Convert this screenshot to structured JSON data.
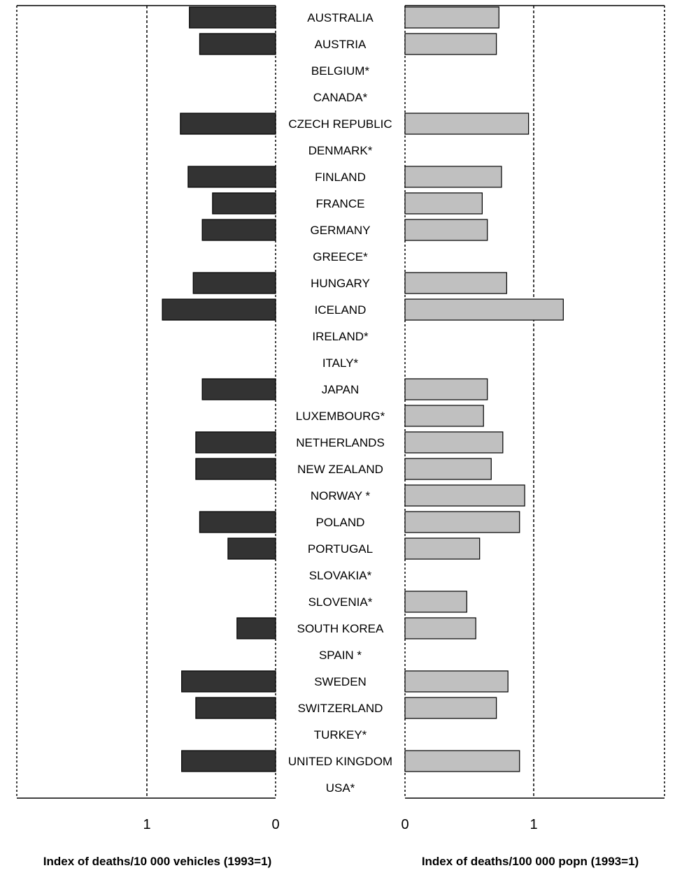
{
  "chart_data": {
    "type": "bar",
    "orientation": "horizontal",
    "layout": "butterfly",
    "categories": [
      "AUSTRALIA",
      "AUSTRIA",
      "BELGIUM*",
      "CANADA*",
      "CZECH REPUBLIC",
      "DENMARK*",
      "FINLAND",
      "FRANCE",
      "GERMANY",
      "GREECE*",
      "HUNGARY",
      "ICELAND",
      "IRELAND*",
      "ITALY*",
      "JAPAN",
      "LUXEMBOURG*",
      "NETHERLANDS",
      "NEW ZEALAND",
      "NORWAY *",
      "POLAND",
      "PORTUGAL",
      "SLOVAKIA*",
      "SLOVENIA*",
      "SOUTH KOREA",
      "SPAIN *",
      "SWEDEN",
      "SWITZERLAND",
      "TURKEY*",
      "UNITED KINGDOM",
      "USA*"
    ],
    "series": [
      {
        "side": "left",
        "color": "#333333",
        "values": [
          0.67,
          0.59,
          null,
          null,
          0.74,
          null,
          0.68,
          0.49,
          0.57,
          null,
          0.64,
          0.88,
          null,
          null,
          0.57,
          null,
          0.62,
          0.62,
          null,
          0.59,
          0.37,
          null,
          null,
          0.3,
          null,
          0.73,
          0.62,
          null,
          0.73,
          null
        ]
      },
      {
        "side": "right",
        "color": "#c0c0c0",
        "values": [
          0.73,
          0.71,
          null,
          null,
          0.96,
          null,
          0.75,
          0.6,
          0.64,
          null,
          0.79,
          1.23,
          null,
          null,
          0.64,
          0.61,
          0.76,
          0.67,
          0.93,
          0.89,
          0.58,
          null,
          0.48,
          0.55,
          null,
          0.8,
          0.71,
          null,
          0.89,
          null
        ]
      }
    ],
    "left_axis": {
      "xlim": [
        0,
        2
      ],
      "ticks": [
        "1",
        "0"
      ],
      "tick_values": [
        1,
        0
      ],
      "reference_line": 1,
      "xlabel": "Index of deaths/10 000 vehicles (1993=1)"
    },
    "right_axis": {
      "xlim": [
        0,
        2
      ],
      "ticks": [
        "0",
        "1"
      ],
      "tick_values": [
        0,
        1
      ],
      "reference_line": 1,
      "xlabel": "Index of deaths/100 000 popn (1993=1)"
    },
    "grid": false,
    "legend": "none"
  }
}
